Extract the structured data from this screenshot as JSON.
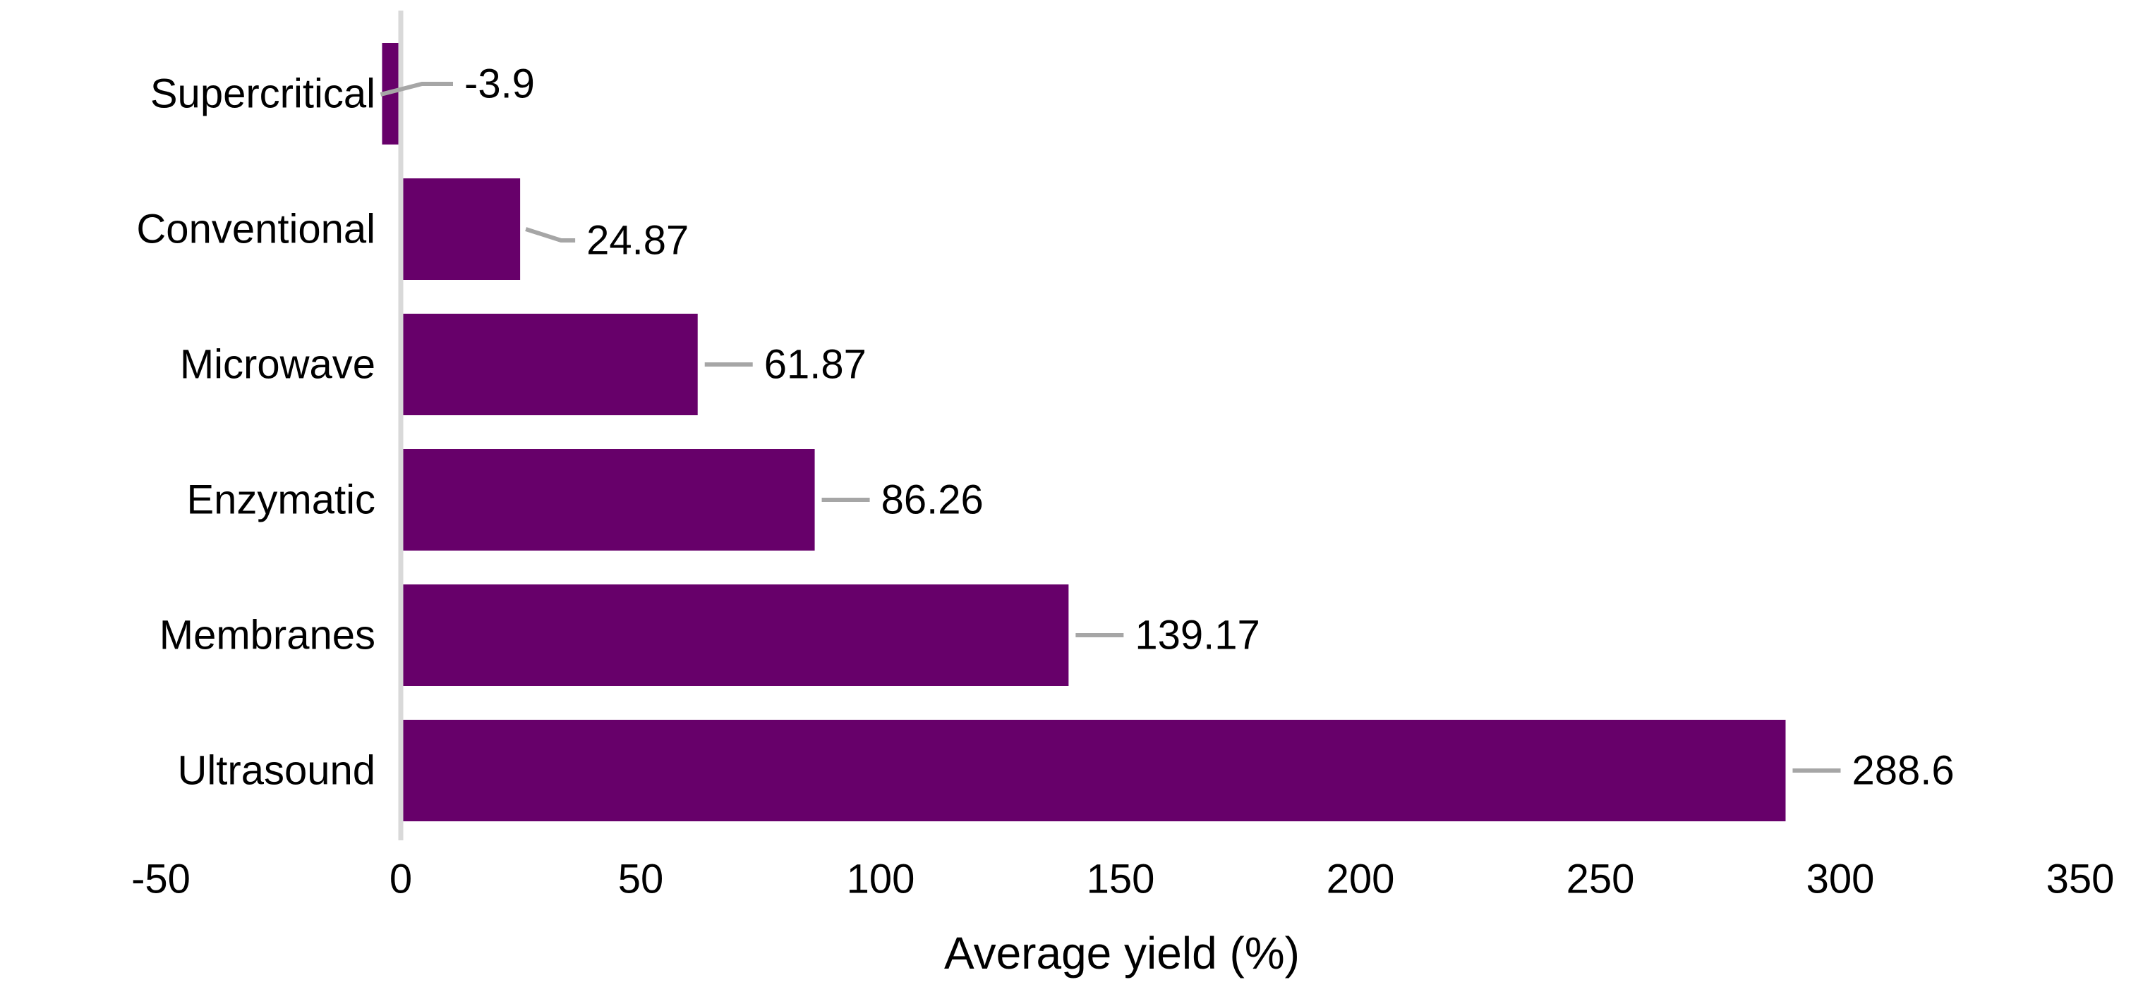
{
  "chart_data": {
    "type": "bar",
    "orientation": "horizontal",
    "title": "",
    "xlabel": "Average yield (%)",
    "ylabel": "",
    "categories": [
      "Supercritical",
      "Conventional",
      "Microwave",
      "Enzymatic",
      "Membranes",
      "Ultrasound"
    ],
    "values": [
      -3.9,
      24.87,
      61.87,
      86.26,
      139.17,
      288.6
    ],
    "data_labels": [
      "-3.9",
      "24.87",
      "61.87",
      "86.26",
      "139.17",
      "288.6"
    ],
    "xlim": [
      -50,
      350
    ],
    "xticks": [
      -50,
      0,
      50,
      100,
      150,
      200,
      250,
      300,
      350
    ],
    "grid": false,
    "legend": false,
    "colors": {
      "bar": "#67006a",
      "axis_line": "#d9d9d9",
      "leader_line": "#a6a6a6",
      "text": "#000000"
    }
  }
}
